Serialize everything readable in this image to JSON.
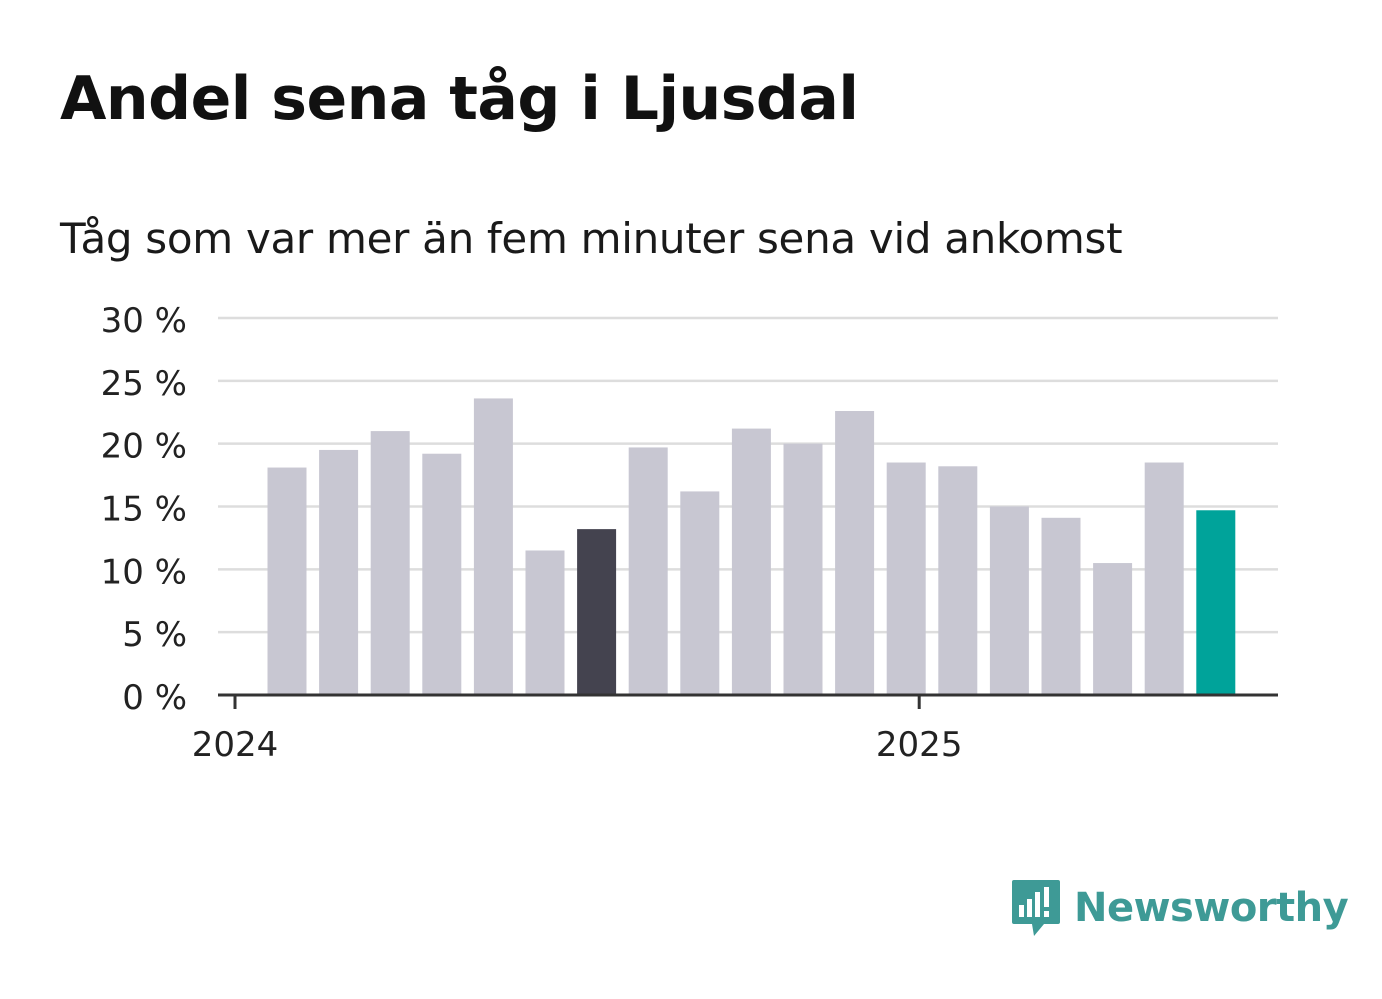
{
  "title": "Andel sena tåg i Ljusdal",
  "subtitle": "Tåg som var mer än fem minuter sena vid ankomst",
  "brand": {
    "name": "Newsworthy",
    "color": "#3e9a96",
    "icon": "newsworthy-logo-icon"
  },
  "colors": {
    "bar": "#c8c7d2",
    "highlight_dark": "#44434f",
    "highlight_accent": "#00a39a",
    "grid": "#dddddd",
    "axis": "#333333"
  },
  "chart_data": {
    "type": "bar",
    "title": "Andel sena tåg i Ljusdal",
    "subtitle": "Tåg som var mer än fem minuter sena vid ankomst",
    "unit": "%",
    "ylim": [
      0,
      30
    ],
    "yticks": [
      0,
      5,
      10,
      15,
      20,
      25,
      30
    ],
    "ytick_labels": [
      "0 %",
      "5 %",
      "10 %",
      "15 %",
      "20 %",
      "25 %",
      "30 %"
    ],
    "xtick_labels": [
      "2024",
      "2025"
    ],
    "grid": true,
    "categories": [
      "2024-01",
      "2024-02",
      "2024-03",
      "2024-04",
      "2024-05",
      "2024-06",
      "2024-07",
      "2024-08",
      "2024-09",
      "2024-10",
      "2024-11",
      "2024-12",
      "2025-01",
      "2025-02",
      "2025-03",
      "2025-04",
      "2025-05",
      "2025-06",
      "2025-07"
    ],
    "values": [
      18.1,
      19.5,
      21.0,
      19.2,
      23.6,
      11.5,
      13.2,
      19.7,
      16.2,
      21.2,
      20.0,
      22.6,
      18.5,
      18.2,
      15.0,
      14.1,
      10.5,
      18.5,
      14.7
    ],
    "highlight": {
      "2024-07": "dark",
      "2025-07": "accent"
    }
  }
}
